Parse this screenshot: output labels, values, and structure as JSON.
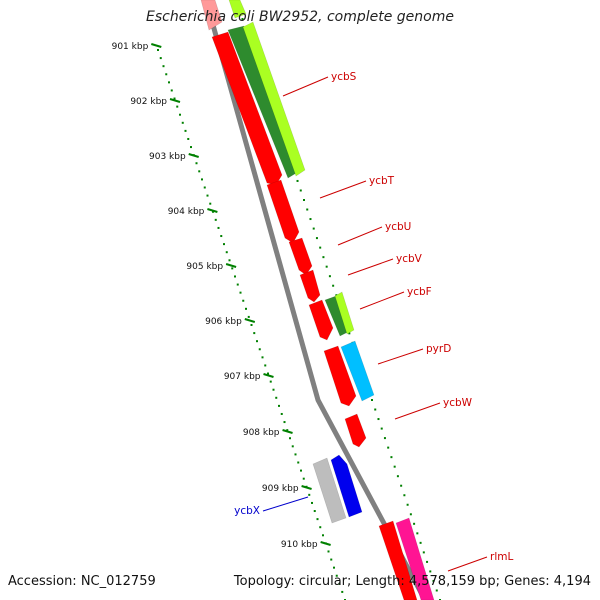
{
  "title": "Escherichia coli BW2952, complete genome",
  "accession_label": "Accession: NC_012759",
  "summary_label": "Topology: circular; Length: 4,578,159 bp; Genes: 4,194",
  "kbp_ticks": [
    "901 kbp",
    "902 kbp",
    "903 kbp",
    "904 kbp",
    "905 kbp",
    "906 kbp",
    "907 kbp",
    "908 kbp",
    "909 kbp",
    "910 kbp"
  ],
  "gene_labels": [
    "ycbS",
    "ycbT",
    "ycbU",
    "ycbV",
    "ycbF",
    "pyrD",
    "ycbW",
    "ycbX",
    "rlmL"
  ],
  "colors": {
    "backbone": "#808080",
    "scale_ticks": "#008000",
    "gene_red": "#ff0000",
    "gene_green": "#2e8b2e",
    "gene_lime": "#aaff22",
    "gene_cyan": "#00bfff",
    "gene_blue": "#0000ee",
    "gene_gray": "#bdbdbd",
    "gene_pink": "#ff1493",
    "label_red": "#cc0000",
    "label_blue": "#0000cc"
  }
}
